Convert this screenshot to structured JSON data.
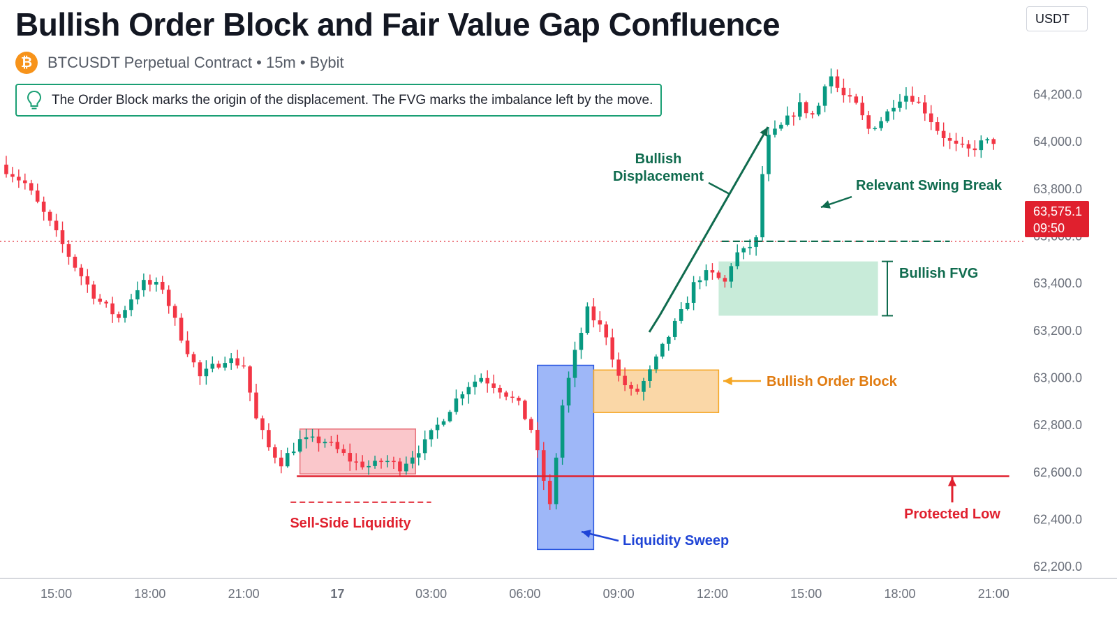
{
  "header": {
    "title": "Bullish Order Block and Fair Value Gap Confluence",
    "symbol_line": "BTCUSDT Perpetual Contract • 15m • Bybit",
    "note": "The Order Block marks the origin of the displacement. The FVG marks the imbalance left by the move.",
    "currency": "USDT",
    "icons": {
      "symbol": "bitcoin-icon",
      "note": "lightbulb-icon"
    }
  },
  "price_tag": {
    "price": "63,575.1",
    "countdown": "09:50"
  },
  "colors": {
    "bull": "#089981",
    "bear": "#f23645",
    "ob": "#f5a623",
    "fvg": "#2ebd85",
    "sweep": "#2962ff",
    "protected": "#e0202e"
  },
  "chart_data": {
    "type": "candlestick",
    "title": "Bullish Order Block and Fair Value Gap Confluence",
    "y_ticks": [
      62200,
      62400,
      62600,
      62800,
      63000,
      63200,
      63400,
      63600,
      63800,
      64000,
      64200
    ],
    "y_tick_labels": [
      "62,200.0",
      "62,400.0",
      "62,600.0",
      "62,800.0",
      "63,000.0",
      "63,200.0",
      "63,400.0",
      "63,600.0",
      "63,800.0",
      "64,000.0",
      "64,200.0"
    ],
    "ylim": [
      62150,
      64420
    ],
    "x_ticks": [
      {
        "label": "15:00",
        "t": 15
      },
      {
        "label": "18:00",
        "t": 18
      },
      {
        "label": "21:00",
        "t": 21
      },
      {
        "label": "17",
        "t": 24,
        "bold": true
      },
      {
        "label": "03:00",
        "t": 27
      },
      {
        "label": "06:00",
        "t": 30
      },
      {
        "label": "09:00",
        "t": 33
      },
      {
        "label": "12:00",
        "t": 36
      },
      {
        "label": "15:00",
        "t": 39
      },
      {
        "label": "18:00",
        "t": 42
      },
      {
        "label": "21:00",
        "t": 45
      }
    ],
    "xlim": [
      13.2,
      46.0
    ],
    "current_price": 63575.1,
    "key_points": [
      {
        "t": 13.2,
        "p": 63900
      },
      {
        "t": 14.0,
        "p": 63820
      },
      {
        "t": 14.8,
        "p": 63650
      },
      {
        "t": 15.6,
        "p": 63470
      },
      {
        "t": 16.3,
        "p": 63330
      },
      {
        "t": 17.0,
        "p": 63250
      },
      {
        "t": 17.7,
        "p": 63400
      },
      {
        "t": 18.4,
        "p": 63380
      },
      {
        "t": 18.9,
        "p": 63200
      },
      {
        "t": 19.6,
        "p": 63000
      },
      {
        "t": 20.4,
        "p": 63080
      },
      {
        "t": 21.0,
        "p": 63050
      },
      {
        "t": 21.4,
        "p": 62820
      },
      {
        "t": 21.8,
        "p": 62700
      },
      {
        "t": 22.2,
        "p": 62640
      },
      {
        "t": 22.8,
        "p": 62730
      },
      {
        "t": 23.6,
        "p": 62730
      },
      {
        "t": 24.5,
        "p": 62640
      },
      {
        "t": 25.1,
        "p": 62620
      },
      {
        "t": 25.5,
        "p": 62650
      },
      {
        "t": 26.0,
        "p": 62620
      },
      {
        "t": 26.8,
        "p": 62720
      },
      {
        "t": 27.5,
        "p": 62850
      },
      {
        "t": 28.1,
        "p": 62960
      },
      {
        "t": 28.6,
        "p": 63000
      },
      {
        "t": 29.1,
        "p": 62960
      },
      {
        "t": 29.5,
        "p": 62920
      },
      {
        "t": 29.8,
        "p": 62880
      },
      {
        "t": 30.2,
        "p": 62780
      },
      {
        "t": 30.5,
        "p": 62620
      },
      {
        "t": 30.8,
        "p": 62450
      },
      {
        "t": 31.2,
        "p": 62880
      },
      {
        "t": 31.6,
        "p": 63100
      },
      {
        "t": 32.0,
        "p": 63280
      },
      {
        "t": 32.6,
        "p": 63180
      },
      {
        "t": 33.0,
        "p": 63000
      },
      {
        "t": 33.5,
        "p": 62920
      },
      {
        "t": 34.0,
        "p": 63020
      },
      {
        "t": 34.5,
        "p": 63150
      },
      {
        "t": 35.0,
        "p": 63270
      },
      {
        "t": 35.5,
        "p": 63420
      },
      {
        "t": 35.9,
        "p": 63440
      },
      {
        "t": 36.4,
        "p": 63400
      },
      {
        "t": 36.7,
        "p": 63520
      },
      {
        "t": 37.0,
        "p": 63530
      },
      {
        "t": 37.4,
        "p": 63580
      },
      {
        "t": 37.7,
        "p": 64000
      },
      {
        "t": 38.2,
        "p": 64060
      },
      {
        "t": 38.8,
        "p": 64150
      },
      {
        "t": 39.3,
        "p": 64100
      },
      {
        "t": 39.7,
        "p": 64300
      },
      {
        "t": 40.1,
        "p": 64200
      },
      {
        "t": 40.6,
        "p": 64150
      },
      {
        "t": 41.0,
        "p": 64050
      },
      {
        "t": 41.5,
        "p": 64100
      },
      {
        "t": 41.9,
        "p": 64180
      },
      {
        "t": 42.3,
        "p": 64200
      },
      {
        "t": 42.8,
        "p": 64130
      },
      {
        "t": 43.2,
        "p": 64050
      },
      {
        "t": 43.7,
        "p": 63980
      },
      {
        "t": 44.2,
        "p": 63960
      },
      {
        "t": 44.6,
        "p": 63990
      },
      {
        "t": 45.0,
        "p": 64000
      }
    ],
    "zones": {
      "sell_side_range": {
        "t0": 22.8,
        "t1": 26.5,
        "p0": 62590,
        "p1": 62780
      },
      "liquidity_sweep": {
        "t0": 30.4,
        "t1": 32.2,
        "p0": 62270,
        "p1": 63050
      },
      "bullish_order_block": {
        "t0": 32.2,
        "t1": 36.2,
        "p0": 62850,
        "p1": 63030
      },
      "bullish_fvg": {
        "t0": 36.2,
        "t1": 41.3,
        "p0": 63260,
        "p1": 63490
      }
    },
    "levels": {
      "protected_low": {
        "p": 62580,
        "t0": 22.7,
        "t1": 45.5
      },
      "sell_side_liquidity": {
        "p": 62470,
        "t0": 22.5,
        "t1": 27.0
      },
      "relevant_swing_break": {
        "p": 63575,
        "t0": 36.3,
        "t1": 43.6
      }
    },
    "annotations": {
      "sell_side_liquidity": "Sell-Side Liquidity",
      "liquidity_sweep": "Liquidity Sweep",
      "bullish_order_block": "Bullish Order Block",
      "bullish_fvg": "Bullish FVG",
      "bullish_displacement_1": "Bullish",
      "bullish_displacement_2": "Displacement",
      "relevant_swing_break": "Relevant Swing Break",
      "protected_low": "Protected Low"
    }
  }
}
